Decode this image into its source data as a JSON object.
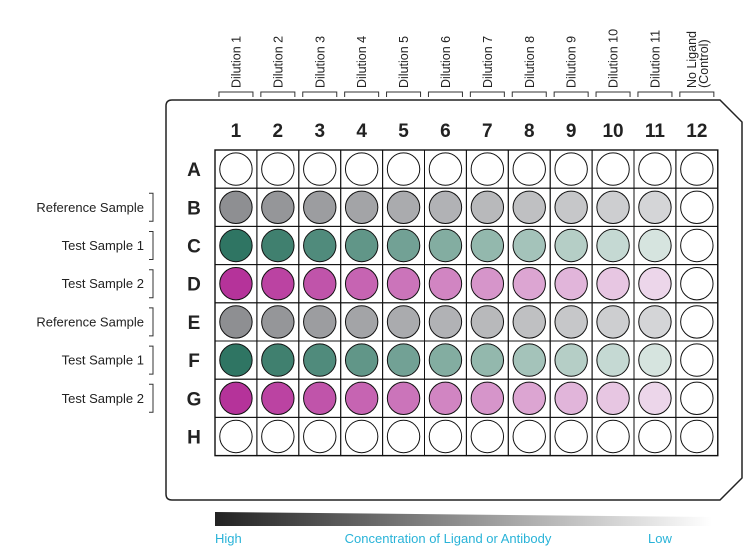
{
  "columns": [
    {
      "number": "1",
      "label": "Dilution 1"
    },
    {
      "number": "2",
      "label": "Dilution 2"
    },
    {
      "number": "3",
      "label": "Dilution 3"
    },
    {
      "number": "4",
      "label": "Dilution 4"
    },
    {
      "number": "5",
      "label": "Dilution 5"
    },
    {
      "number": "6",
      "label": "Dilution 6"
    },
    {
      "number": "7",
      "label": "Dilution 7"
    },
    {
      "number": "8",
      "label": "Dilution 8"
    },
    {
      "number": "9",
      "label": "Dilution 9"
    },
    {
      "number": "10",
      "label": "Dilution 10"
    },
    {
      "number": "11",
      "label": "Dilution 11"
    },
    {
      "number": "12",
      "label": "No Ligand",
      "label2": "(Control)"
    }
  ],
  "rows": [
    {
      "letter": "A",
      "sample": "",
      "palette": "empty"
    },
    {
      "letter": "B",
      "sample": "Reference Sample",
      "palette": "gray"
    },
    {
      "letter": "C",
      "sample": "Test Sample 1",
      "palette": "teal"
    },
    {
      "letter": "D",
      "sample": "Test Sample 2",
      "palette": "magenta"
    },
    {
      "letter": "E",
      "sample": "Reference Sample",
      "palette": "gray"
    },
    {
      "letter": "F",
      "sample": "Test Sample 1",
      "palette": "teal"
    },
    {
      "letter": "G",
      "sample": "Test Sample 2",
      "palette": "magenta"
    },
    {
      "letter": "H",
      "sample": "",
      "palette": "empty"
    }
  ],
  "palettes": {
    "gray": {
      "high": "#8e8f92",
      "low": "#d4d5d7"
    },
    "teal": {
      "high": "#2f7563",
      "low": "#d6e4df"
    },
    "magenta": {
      "high": "#b5339a",
      "low": "#ecd6ea"
    }
  },
  "colors": {
    "legend_text": "#29b3d8",
    "gradient_dark": "#222222",
    "well_outline": "#111111",
    "plate_outline": "#222222"
  },
  "legend": {
    "high": "High",
    "title": "Concentration of Ligand or Antibody",
    "low": "Low"
  }
}
